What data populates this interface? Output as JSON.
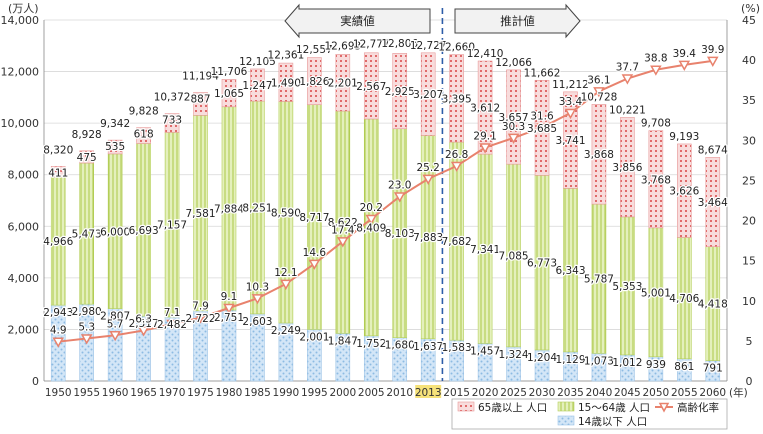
{
  "chart_data": {
    "type": "bar",
    "title": "",
    "y_left_unit": "(万人)",
    "y_right_unit": "(%)",
    "x_unit": "(年)",
    "y_left_range": [
      0,
      14000
    ],
    "y_left_ticks": [
      "0",
      "2,000",
      "4,000",
      "6,000",
      "8,000",
      "10,000",
      "12,000",
      "14,000"
    ],
    "y_right_range": [
      0,
      45
    ],
    "y_right_ticks": [
      "0",
      "5",
      "10",
      "15",
      "20",
      "25",
      "30",
      "35",
      "40",
      "45"
    ],
    "highlight_year": "2013",
    "phase_labels": {
      "actual": "実績値",
      "projected": "推計値"
    },
    "categories": [
      "1950",
      "1955",
      "1960",
      "1965",
      "1970",
      "1975",
      "1980",
      "1985",
      "1990",
      "1995",
      "2000",
      "2005",
      "2010",
      "2013",
      "2015",
      "2020",
      "2025",
      "2030",
      "2035",
      "2040",
      "2045",
      "2050",
      "2055",
      "2060"
    ],
    "series": [
      {
        "name": "14歳以下 人口",
        "role": "young",
        "values": [
          2943,
          2980,
          2807,
          2517,
          2482,
          2722,
          2751,
          2603,
          2249,
          2001,
          1847,
          1752,
          1680,
          1637,
          1583,
          1457,
          1324,
          1204,
          1129,
          1073,
          1012,
          939,
          861,
          791
        ],
        "labels": [
          "2,943",
          "2,980",
          "2,807",
          "2,517",
          "2,482",
          "2,722",
          "2,751",
          "2,603",
          "2,249",
          "2,001",
          "1,847",
          "1,752",
          "1,680",
          "1,637",
          "1,583",
          "1,457",
          "1,324",
          "1,204",
          "1,129",
          "1,073",
          "1,012",
          "939",
          "861",
          "791"
        ]
      },
      {
        "name": "15～64歳 人口",
        "role": "working",
        "values": [
          4966,
          5473,
          6000,
          6693,
          7157,
          7581,
          7884,
          8251,
          8590,
          8717,
          8622,
          8409,
          8103,
          7883,
          7682,
          7341,
          7085,
          6773,
          6343,
          5787,
          5353,
          5001,
          4706,
          4418
        ],
        "labels": [
          "4,966",
          "5,473",
          "6,000",
          "6,693",
          "7,157",
          "7,581",
          "7,884",
          "8,251",
          "8,590",
          "8,717",
          "8,622",
          "8,409",
          "8,103",
          "7,883",
          "7,682",
          "7,341",
          "7,085",
          "6,773",
          "6,343",
          "5,787",
          "5,353",
          "5,001",
          "4,706",
          "4,418"
        ]
      },
      {
        "name": "65歳以上 人口",
        "role": "elderly",
        "values": [
          411,
          475,
          535,
          618,
          733,
          887,
          1065,
          1247,
          1490,
          1826,
          2201,
          2567,
          2925,
          3207,
          3395,
          3612,
          3657,
          3685,
          3741,
          3868,
          3856,
          3768,
          3626,
          3464
        ],
        "labels": [
          "411",
          "475",
          "535",
          "618",
          "733",
          "887",
          "1,065",
          "1,247",
          "1,490",
          "1,826",
          "2,201",
          "2,567",
          "2,925",
          "3,207",
          "3,395",
          "3,612",
          "3,657",
          "3,685",
          "3,741",
          "3,868",
          "3,856",
          "3,768",
          "3,626",
          "3,464"
        ]
      }
    ],
    "totals": [
      8320,
      8928,
      9342,
      9828,
      10372,
      11194,
      11706,
      12105,
      12361,
      12557,
      12693,
      12777,
      12806,
      12727,
      12660,
      12410,
      12066,
      11662,
      11212,
      10728,
      10221,
      9708,
      9193,
      8674
    ],
    "total_labels": [
      "8,320",
      "8,928",
      "9,342",
      "9,828",
      "10,372",
      "11,194",
      "11,706",
      "12,105",
      "12,361",
      "12,557",
      "12,693",
      "12,777",
      "12,806",
      "12,727",
      "12,660",
      "12,410",
      "12,066",
      "11,662",
      "11,212",
      "10,728",
      "10,221",
      "9,708",
      "9,193",
      "8,674"
    ],
    "line": {
      "name": "高齢化率",
      "values": [
        4.9,
        5.3,
        5.7,
        6.3,
        7.1,
        7.9,
        9.1,
        10.3,
        12.1,
        14.6,
        17.4,
        20.2,
        23.0,
        25.2,
        26.8,
        29.1,
        30.3,
        31.6,
        33.4,
        36.1,
        37.7,
        38.8,
        39.4,
        39.9
      ],
      "labels": [
        "4.9",
        "5.3",
        "5.7",
        "6.3",
        "7.1",
        "7.9",
        "9.1",
        "10.3",
        "12.1",
        "14.6",
        "17.4",
        "20.2",
        "23.0",
        "25.2",
        "26.8",
        "29.1",
        "30.3",
        "31.6",
        "33.4",
        "36.1",
        "37.7",
        "38.8",
        "39.4",
        "39.9"
      ]
    },
    "legend_placement": "bottom-right",
    "grid": true,
    "colors": {
      "elderly_fill": "#f7d6d6",
      "elderly_pattern": "#e06a6a",
      "working_fill": "#e2efb7",
      "working_pattern": "#a6c43c",
      "young_fill": "#cfe3f5",
      "young_pattern": "#7fb2de",
      "line": "#e8826d",
      "divider": "#2d5da8",
      "highlight": "#f6e27a"
    }
  }
}
